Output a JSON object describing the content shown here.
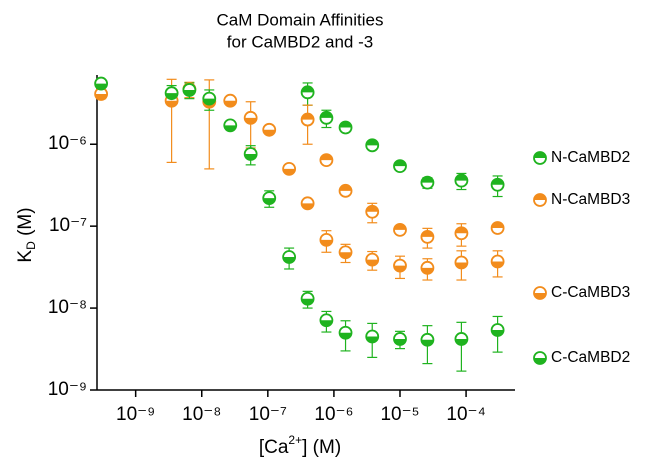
{
  "chart_data": {
    "type": "scatter",
    "title": [
      "CaM Domain Affinities",
      "for CaMBD2 and -3"
    ],
    "x_label": [
      "[Ca",
      "2+",
      "] (M)"
    ],
    "y_label": [
      "K",
      "D",
      " (M)"
    ],
    "log_x": true,
    "log_y": true,
    "xlim": [
      2.6e-10,
      0.00055
    ],
    "ylim": [
      1e-09,
      7e-06
    ],
    "xticks": [
      {
        "value": 1e-09,
        "label": "10⁻⁹"
      },
      {
        "value": 1e-08,
        "label": "10⁻⁸"
      },
      {
        "value": 1e-07,
        "label": "10⁻⁷"
      },
      {
        "value": 1e-06,
        "label": "10⁻⁶"
      },
      {
        "value": 1e-05,
        "label": "10⁻⁵"
      },
      {
        "value": 0.0001,
        "label": "10⁻⁴"
      }
    ],
    "yticks": [
      {
        "value": 1e-09,
        "label": "10⁻⁹"
      },
      {
        "value": 1e-08,
        "label": "10⁻⁸"
      },
      {
        "value": 1e-07,
        "label": "10⁻⁷"
      },
      {
        "value": 1e-06,
        "label": "10⁻⁶"
      }
    ],
    "series": [
      {
        "name": "N-CaMBD2",
        "color": "#1fb31f",
        "half": "top",
        "x": [
          4e-07,
          7.7e-07,
          1.5e-06,
          3.8e-06,
          1e-05,
          2.6e-05,
          8.5e-05,
          0.0003
        ],
        "values": [
          4.3e-06,
          2.1e-06,
          1.6e-06,
          9.7e-07,
          5.4e-07,
          3.4e-07,
          3.6e-07,
          3.2e-07
        ],
        "errors": [
          1.3e-06,
          5e-07,
          1e-07,
          1e-07,
          5e-08,
          5e-08,
          8e-08,
          9e-08
        ]
      },
      {
        "name": "N-CaMBD3",
        "color": "#f28c1c",
        "half": "top",
        "x": [
          4e-07,
          7.7e-07,
          1.5e-06,
          3.8e-06,
          1e-05,
          2.6e-05,
          8.5e-05,
          0.0003
        ],
        "values": [
          2e-06,
          6.4e-07,
          2.7e-07,
          1.5e-07,
          9e-08,
          7.4e-08,
          8.2e-08,
          9.5e-08
        ],
        "errors": [
          1e-06,
          5e-08,
          3e-08,
          4e-08,
          1e-08,
          2e-08,
          2.5e-08,
          1e-08
        ]
      },
      {
        "name": "C-CaMBD3",
        "color": "#f28c1c",
        "half": "bottom",
        "x": [
          3e-10,
          3.5e-09,
          6.5e-09,
          1.3e-08,
          2.7e-08,
          5.5e-08,
          1.05e-07,
          2.1e-07,
          4e-07,
          7.7e-07,
          1.5e-06,
          3.8e-06,
          1e-05,
          2.6e-05,
          8.5e-05,
          0.0003
        ],
        "values": [
          4.1e-06,
          3.4e-06,
          4.7e-06,
          3.3e-06,
          3.4e-06,
          2.1e-06,
          1.5e-06,
          5e-07,
          1.9e-07,
          6.8e-08,
          4.8e-08,
          3.9e-08,
          3.3e-08,
          3.1e-08,
          3.6e-08,
          3.7e-08
        ],
        "errors": [
          5e-07,
          2.8e-06,
          1e-06,
          2.8e-06,
          3e-07,
          1.2e-06,
          1e-07,
          3e-08,
          2e-08,
          2e-08,
          1.2e-08,
          1e-08,
          1e-08,
          9e-09,
          1.4e-08,
          1.3e-08
        ]
      },
      {
        "name": "C-CaMBD2",
        "color": "#1fb31f",
        "half": "bottom",
        "x": [
          3e-10,
          3.5e-09,
          6.5e-09,
          1.3e-08,
          2.7e-08,
          5.5e-08,
          1.05e-07,
          2.1e-07,
          4e-07,
          7.7e-07,
          1.5e-06,
          3.8e-06,
          1e-05,
          2.6e-05,
          8.5e-05,
          0.0003
        ],
        "values": [
          5.5e-06,
          4.2e-06,
          4.6e-06,
          3.6e-06,
          1.7e-06,
          7.6e-07,
          2.2e-07,
          4.2e-08,
          1.3e-08,
          7.1e-09,
          5e-09,
          4.5e-09,
          4.2e-09,
          4.1e-09,
          4.2e-09,
          5.4e-09
        ],
        "errors": [
          5e-07,
          1e-06,
          1e-06,
          1e-06,
          1e-07,
          2e-07,
          5e-08,
          1.2e-08,
          3e-09,
          2e-09,
          2e-09,
          2e-09,
          1e-09,
          2e-09,
          2.5e-09,
          2.5e-09
        ]
      }
    ]
  }
}
